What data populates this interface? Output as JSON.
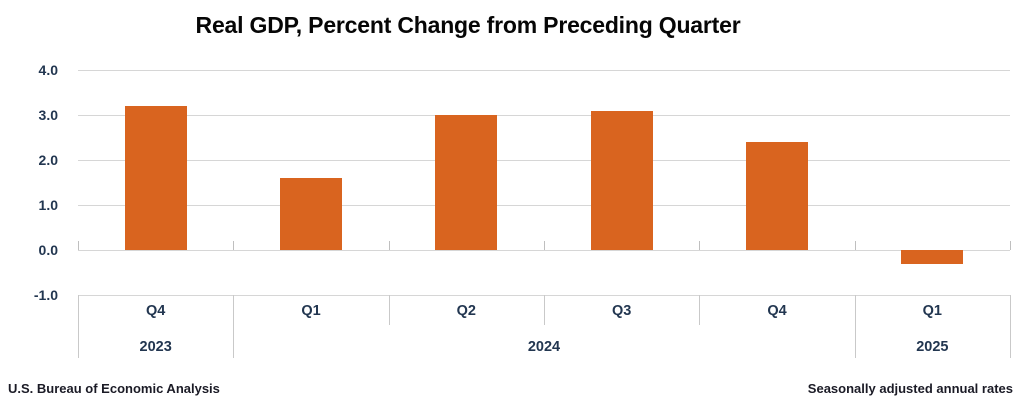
{
  "title": "Real GDP, Percent Change from Preceding Quarter",
  "footer": {
    "source": "U.S. Bureau of Economic Analysis",
    "note": "Seasonally adjusted annual rates"
  },
  "chart_data": {
    "type": "bar",
    "title": "Real GDP, Percent Change from Preceding Quarter",
    "categories": [
      "Q4",
      "Q1",
      "Q2",
      "Q3",
      "Q4",
      "Q1"
    ],
    "year_groups": [
      {
        "label": "2023",
        "span": 1
      },
      {
        "label": "2024",
        "span": 4
      },
      {
        "label": "2025",
        "span": 1
      }
    ],
    "values": [
      3.2,
      1.6,
      3.0,
      3.1,
      2.4,
      -0.3
    ],
    "xlabel": "",
    "ylabel": "",
    "ylim": [
      -1.0,
      4.0
    ],
    "ytick_labels": [
      "4.0",
      "3.0",
      "2.0",
      "1.0",
      "0.0",
      "-1.0"
    ],
    "ytick_values": [
      4.0,
      3.0,
      2.0,
      1.0,
      0.0,
      -1.0
    ],
    "grid": true,
    "legend": "none",
    "bar_color": "#D9641F",
    "axis_label_color": "#223650",
    "grid_color": "#D6D6D6"
  }
}
